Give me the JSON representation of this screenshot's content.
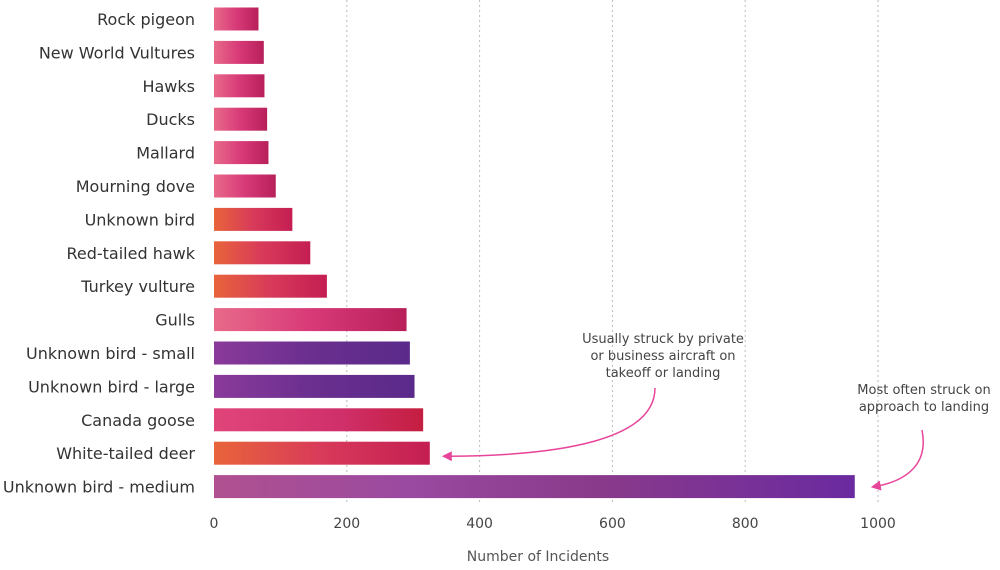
{
  "chart_data": {
    "type": "bar",
    "orientation": "horizontal",
    "title": "",
    "xlabel": "Number of Incidents",
    "ylabel": "",
    "xlim": [
      0,
      1000
    ],
    "xticks": [
      0,
      200,
      400,
      600,
      800,
      1000
    ],
    "grid": "vertical-dotted",
    "categories": [
      "Rock pigeon",
      "New World Vultures",
      "Hawks",
      "Ducks",
      "Mallard",
      "Mourning dove",
      "Unknown bird",
      "Red-tailed hawk",
      "Turkey vulture",
      "Gulls",
      "Unknown bird - small",
      "Unknown bird - large",
      "Canada goose",
      "White-tailed deer",
      "Unknown bird - medium"
    ],
    "values": [
      67,
      75,
      76,
      80,
      82,
      93,
      118,
      145,
      170,
      290,
      295,
      302,
      315,
      325,
      965
    ],
    "colors": {
      "pink": "#e0457a",
      "crimson": "#c41e52",
      "orange": "#e8643a",
      "purple": "#6a2f8f",
      "plum": "#7a3a8a",
      "annotation": "#e8459a"
    },
    "annotations": [
      {
        "lines": [
          "Usually struck by private",
          "or business aircraft on",
          "takeoff or landing"
        ],
        "target": "White-tailed deer"
      },
      {
        "lines": [
          "Most often struck on",
          "approach to landing"
        ],
        "target": "Unknown bird - medium"
      }
    ]
  }
}
